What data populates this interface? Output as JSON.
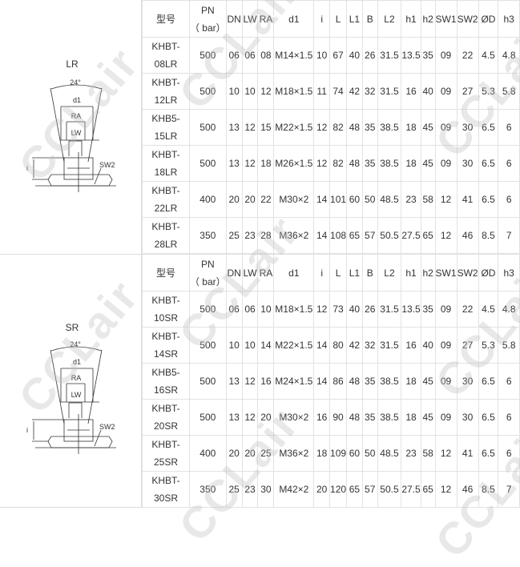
{
  "watermark": "CCLair",
  "headers": {
    "model": "型号",
    "pn": "PN",
    "pn_unit": "（ bar）",
    "cols": [
      "DN",
      "LW",
      "RA",
      "d1",
      "i",
      "L",
      "L1",
      "B",
      "L2",
      "h1",
      "h2",
      "SW1",
      "SW2",
      "ØD",
      "h3"
    ]
  },
  "sections": [
    {
      "label": "LR",
      "diagram": {
        "angle": "24°",
        "d1": "d1",
        "ra": "RA",
        "lw": "LW",
        "sw2": "SW2",
        "i": "i"
      },
      "rows": [
        {
          "model1": "KHBT-",
          "model2": "08LR",
          "vals": [
            "500",
            "06",
            "06",
            "08",
            "M14×1.5",
            "10",
            "67",
            "40",
            "26",
            "31.5",
            "13.5",
            "35",
            "09",
            "22",
            "4.5",
            "4.8"
          ]
        },
        {
          "model1": "KHBT-",
          "model2": "12LR",
          "vals": [
            "500",
            "10",
            "10",
            "12",
            "M18×1.5",
            "11",
            "74",
            "42",
            "32",
            "31.5",
            "16",
            "40",
            "09",
            "27",
            "5.3",
            "5.8"
          ]
        },
        {
          "model1": "KHB5-",
          "model2": "15LR",
          "vals": [
            "500",
            "13",
            "12",
            "15",
            "M22×1.5",
            "12",
            "82",
            "48",
            "35",
            "38.5",
            "18",
            "45",
            "09",
            "30",
            "6.5",
            "6"
          ]
        },
        {
          "model1": "KHBT-",
          "model2": "18LR",
          "vals": [
            "500",
            "13",
            "12",
            "18",
            "M26×1.5",
            "12",
            "82",
            "48",
            "35",
            "38.5",
            "18",
            "45",
            "09",
            "30",
            "6.5",
            "6"
          ]
        },
        {
          "model1": "KHBT-",
          "model2": "22LR",
          "vals": [
            "400",
            "20",
            "20",
            "22",
            "M30×2",
            "14",
            "101",
            "60",
            "50",
            "48.5",
            "23",
            "58",
            "12",
            "41",
            "6.5",
            "6"
          ]
        },
        {
          "model1": "KHBT-",
          "model2": "28LR",
          "vals": [
            "350",
            "25",
            "23",
            "28",
            "M36×2",
            "14",
            "108",
            "65",
            "57",
            "50.5",
            "27.5",
            "65",
            "12",
            "46",
            "8.5",
            "7"
          ]
        }
      ]
    },
    {
      "label": "SR",
      "diagram": {
        "angle": "24°",
        "d1": "d1",
        "ra": "RA",
        "lw": "LW",
        "sw2": "SW2",
        "i": "i"
      },
      "rows": [
        {
          "model1": "KHBT-",
          "model2": "10SR",
          "vals": [
            "500",
            "06",
            "06",
            "10",
            "M18×1.5",
            "12",
            "73",
            "40",
            "26",
            "31.5",
            "13.5",
            "35",
            "09",
            "22",
            "4.5",
            "4.8"
          ]
        },
        {
          "model1": "KHBT-",
          "model2": "14SR",
          "vals": [
            "500",
            "10",
            "10",
            "14",
            "M22×1.5",
            "14",
            "80",
            "42",
            "32",
            "31.5",
            "16",
            "40",
            "09",
            "27",
            "5.3",
            "5.8"
          ]
        },
        {
          "model1": "KHB5-",
          "model2": "16SR",
          "vals": [
            "500",
            "13",
            "12",
            "16",
            "M24×1.5",
            "14",
            "86",
            "48",
            "35",
            "38.5",
            "18",
            "45",
            "09",
            "30",
            "6.5",
            "6"
          ]
        },
        {
          "model1": "KHBT-",
          "model2": "20SR",
          "vals": [
            "500",
            "13",
            "12",
            "20",
            "M30×2",
            "16",
            "90",
            "48",
            "35",
            "38.5",
            "18",
            "45",
            "09",
            "30",
            "6.5",
            "6"
          ]
        },
        {
          "model1": "KHBT-",
          "model2": "25SR",
          "vals": [
            "400",
            "20",
            "20",
            "25",
            "M36×2",
            "18",
            "109",
            "60",
            "50",
            "48.5",
            "23",
            "58",
            "12",
            "41",
            "6.5",
            "6"
          ]
        },
        {
          "model1": "KHBT-",
          "model2": "30SR",
          "vals": [
            "350",
            "25",
            "23",
            "30",
            "M42×2",
            "20",
            "120",
            "65",
            "57",
            "50.5",
            "27.5",
            "65",
            "12",
            "46",
            "8.5",
            "7"
          ]
        }
      ]
    }
  ]
}
